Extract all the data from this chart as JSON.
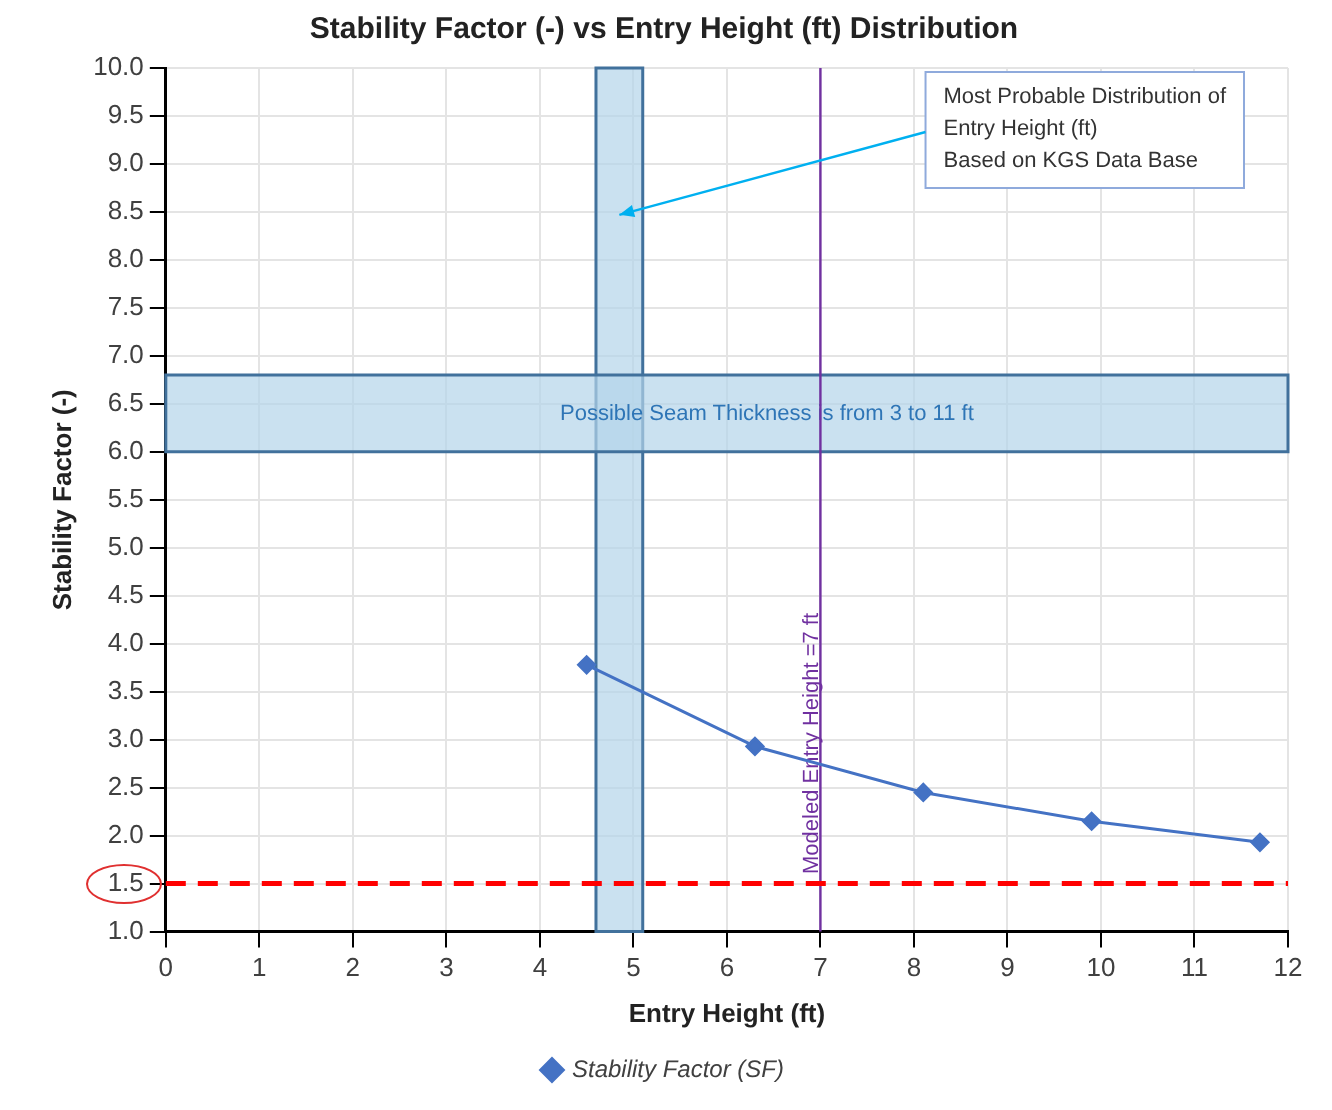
{
  "chart_data": {
    "type": "line",
    "title": "Stability Factor (-) vs Entry Height (ft) Distribution",
    "xlabel": "Entry Height (ft)",
    "ylabel": "Stability Factor (-)",
    "x": [
      4.5,
      6.3,
      8.1,
      9.9,
      11.7
    ],
    "series": [
      {
        "name": "Stability Factor (SF)",
        "color": "#4472c4",
        "values": [
          3.78,
          2.93,
          2.45,
          2.15,
          1.93
        ]
      }
    ],
    "xlim": [
      0,
      12
    ],
    "xticks": [
      0,
      1,
      2,
      3,
      4,
      5,
      6,
      7,
      8,
      9,
      10,
      11,
      12
    ],
    "ylim": [
      1,
      10
    ],
    "yticks": [
      {
        "value": 1,
        "label": "1.0"
      },
      {
        "value": 1.5,
        "label": "1.5"
      },
      {
        "value": 2,
        "label": "2.0"
      },
      {
        "value": 2.5,
        "label": "2.5"
      },
      {
        "value": 3,
        "label": "3.0"
      },
      {
        "value": 3.5,
        "label": "3.5"
      },
      {
        "value": 4,
        "label": "4.0"
      },
      {
        "value": 4.5,
        "label": "4.5"
      },
      {
        "value": 5,
        "label": "5.0"
      },
      {
        "value": 5.5,
        "label": "5.5"
      },
      {
        "value": 6,
        "label": "6.0"
      },
      {
        "value": 6.5,
        "label": "6.5"
      },
      {
        "value": 7,
        "label": "7.0"
      },
      {
        "value": 7.5,
        "label": "7.5"
      },
      {
        "value": 8,
        "label": "8.0"
      },
      {
        "value": 8.5,
        "label": "8.5"
      },
      {
        "value": 9,
        "label": "9.0"
      },
      {
        "value": 9.5,
        "label": "9.5"
      },
      {
        "value": 10,
        "label": "10.0"
      }
    ],
    "grid": true,
    "legend": "bottom",
    "marker": "diamond",
    "line_style": "solid",
    "ref_lines": [
      {
        "axis": "x",
        "value": 7,
        "label": "Modeled Entry Height =7 ft",
        "color": "#7030a0"
      },
      {
        "axis": "y",
        "value": 1.5,
        "color": "#ff0000",
        "line_style": "dashed"
      }
    ],
    "bands": [
      {
        "axis": "x",
        "from": 4.6,
        "to": 5.1,
        "color": "#b4d4ea"
      },
      {
        "axis": "y",
        "from": 6.0,
        "to": 6.8,
        "label": "Possible Seam Thickness is from 3 to 11 ft",
        "color": "#b4d4ea"
      }
    ],
    "annotations": [
      "Most Probable Distribution of\nEntry Height (ft)\nBased on KGS Data Base"
    ]
  }
}
